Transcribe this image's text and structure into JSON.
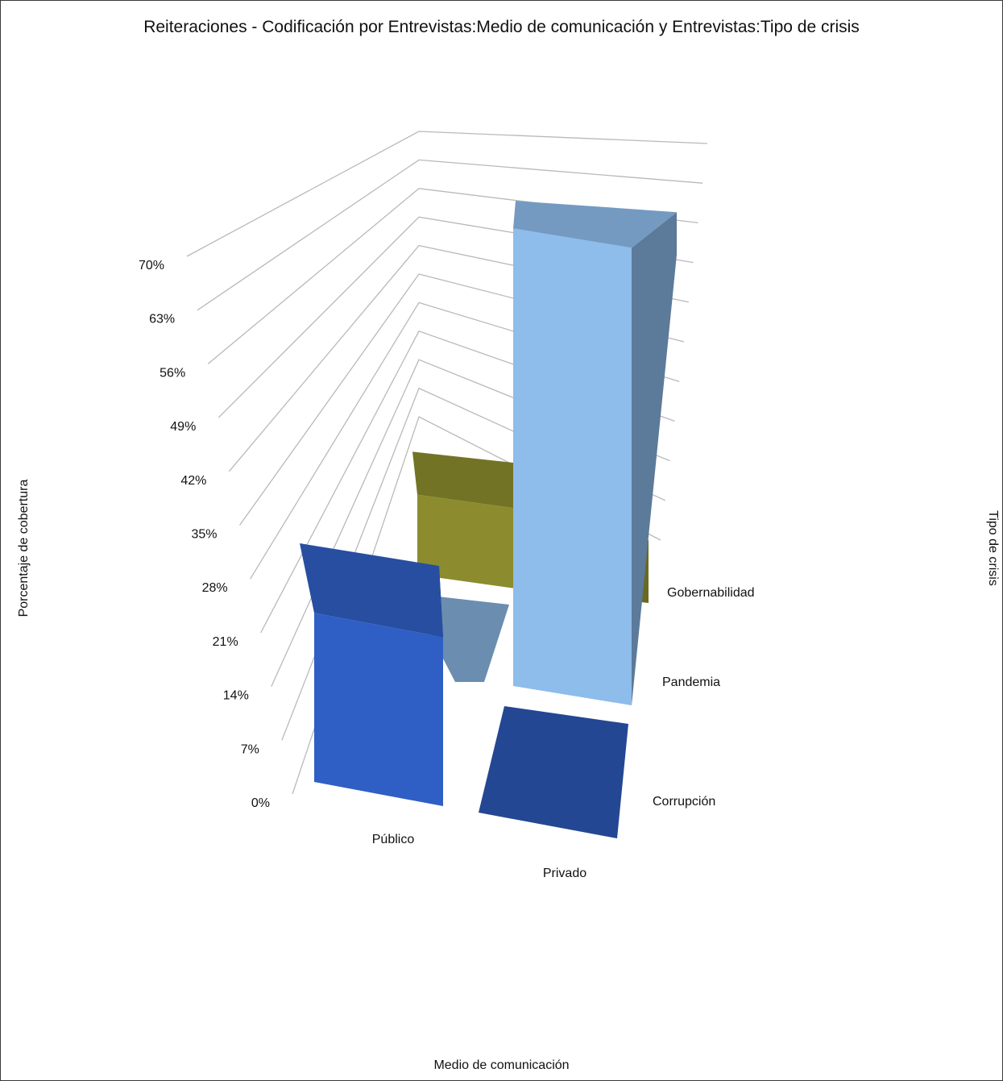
{
  "chart_data": {
    "type": "bar",
    "three_d": true,
    "title": "Reiteraciones - Codificación por Entrevistas:Medio de comunicación y Entrevistas:Tipo de crisis",
    "xlabel": "Medio de comunicación",
    "ylabel": "Porcentaje de cobertura",
    "zlabel": "Tipo de crisis",
    "categories": [
      "Público",
      "Privado"
    ],
    "series_labels": [
      "Corrupción",
      "Pandemia",
      "Gobernabilidad"
    ],
    "y_ticks": [
      "0%",
      "7%",
      "14%",
      "21%",
      "28%",
      "35%",
      "42%",
      "49%",
      "56%",
      "63%",
      "70%"
    ],
    "ylim": [
      0,
      70
    ],
    "grid": true,
    "series": [
      {
        "values": [
          16,
          0
        ],
        "color": "#2F5FC4"
      },
      {
        "values": [
          0,
          66
        ],
        "color": "#8EBCEB"
      },
      {
        "values": [
          14,
          0
        ],
        "color": "#8C8C2E"
      }
    ]
  }
}
